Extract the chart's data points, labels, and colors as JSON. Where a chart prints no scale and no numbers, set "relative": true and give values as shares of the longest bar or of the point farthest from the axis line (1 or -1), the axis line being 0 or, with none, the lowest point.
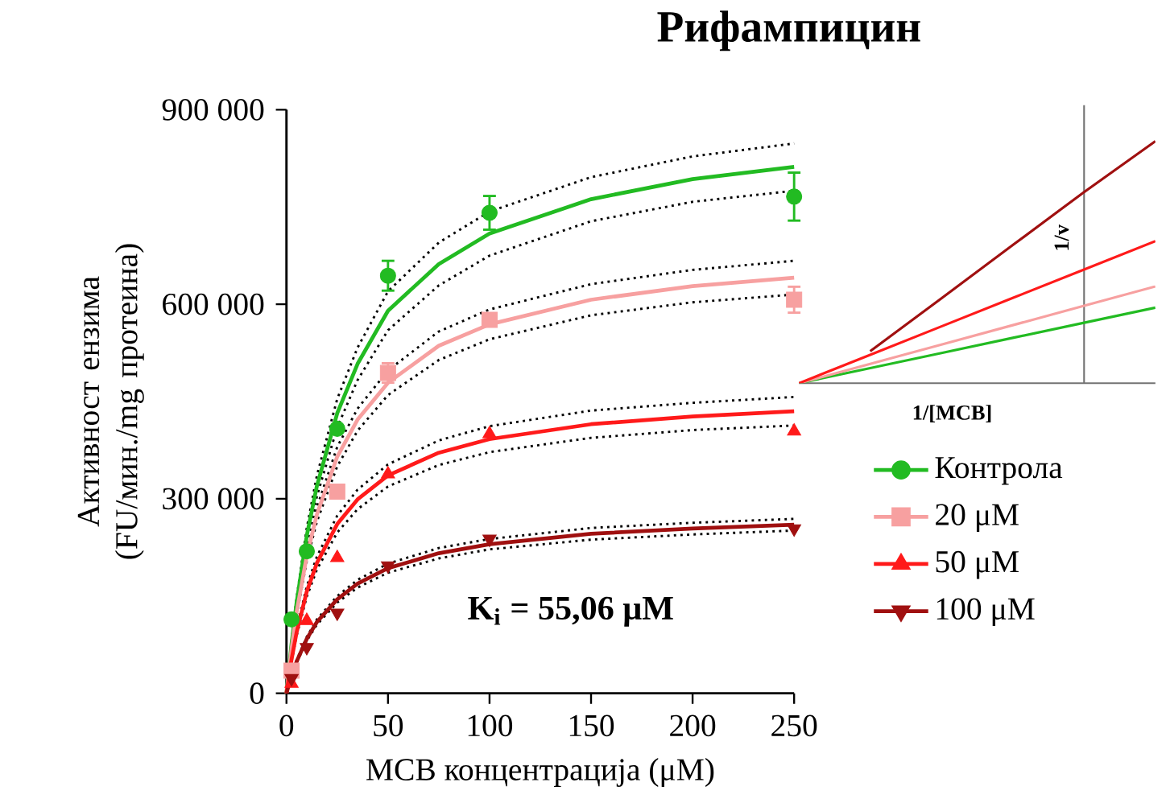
{
  "chart_data": [
    {
      "type": "scatter",
      "title": "Рифампицин",
      "xlabel": "MCB концентрација (μM)",
      "ylabel": "Активност ензима (FU/мин./mg протеина)",
      "xlim": [
        0,
        250
      ],
      "xticks": [
        0,
        50,
        100,
        150,
        200,
        250
      ],
      "ylim": [
        0,
        900000
      ],
      "yticks": [
        {
          "value": 0,
          "label": "0"
        },
        {
          "value": 300000,
          "label": "300 000"
        },
        {
          "value": 600000,
          "label": "600 000"
        },
        {
          "value": 900000,
          "label": "900 000"
        }
      ],
      "legend": "right",
      "grid": false,
      "annotations": [
        "K$_{i}$ = 55,06 μM"
      ],
      "series": [
        {
          "type": "line",
          "color": "#000000",
          "line_style": "dotted",
          "x": [
            0,
            2.5,
            5,
            10,
            15,
            25,
            35,
            50,
            75,
            100,
            150,
            200,
            250
          ],
          "values": [
            0,
            72000,
            133000,
            231000,
            304000,
            410000,
            483000,
            560000,
            629000,
            675000,
            728000,
            758000,
            775000
          ]
        },
        {
          "type": "line",
          "color": "#000000",
          "line_style": "dotted",
          "x": [
            0,
            2.5,
            5,
            10,
            15,
            25,
            35,
            50,
            75,
            100,
            150,
            200,
            250
          ],
          "values": [
            0,
            80000,
            147000,
            255000,
            336000,
            454000,
            533000,
            620000,
            695000,
            743000,
            796000,
            828000,
            848000
          ]
        },
        {
          "type": "line",
          "color": "#000000",
          "line_style": "dotted",
          "x": [
            0,
            2.5,
            5,
            10,
            15,
            25,
            35,
            50,
            75,
            100,
            150,
            200,
            250
          ],
          "values": [
            0,
            66000,
            120000,
            204000,
            265000,
            350000,
            405000,
            460000,
            514000,
            546000,
            583000,
            603000,
            615000
          ]
        },
        {
          "type": "line",
          "color": "#000000",
          "line_style": "dotted",
          "x": [
            0,
            2.5,
            5,
            10,
            15,
            25,
            35,
            50,
            75,
            100,
            150,
            200,
            250
          ],
          "values": [
            0,
            72000,
            130000,
            220000,
            287000,
            380000,
            439000,
            498000,
            558000,
            592000,
            631000,
            653000,
            667000
          ]
        },
        {
          "type": "line",
          "color": "#000000",
          "line_style": "dotted",
          "x": [
            0,
            2.5,
            5,
            10,
            15,
            25,
            35,
            50,
            75,
            100,
            150,
            200,
            250
          ],
          "values": [
            0,
            49000,
            89000,
            149000,
            191000,
            248000,
            284000,
            319000,
            352000,
            372000,
            394000,
            406000,
            413000
          ]
        },
        {
          "type": "line",
          "color": "#000000",
          "line_style": "dotted",
          "x": [
            0,
            2.5,
            5,
            10,
            15,
            25,
            35,
            50,
            75,
            100,
            150,
            200,
            250
          ],
          "values": [
            0,
            55000,
            99000,
            165000,
            211000,
            274000,
            314000,
            353000,
            390000,
            412000,
            436000,
            448000,
            457000
          ]
        },
        {
          "type": "line",
          "color": "#000000",
          "line_style": "dotted",
          "x": [
            0,
            2.5,
            5,
            10,
            15,
            25,
            35,
            50,
            75,
            100,
            150,
            200,
            250
          ],
          "values": [
            0,
            26000,
            47000,
            81000,
            106000,
            140000,
            163000,
            186000,
            208000,
            222000,
            237000,
            245000,
            251000
          ]
        },
        {
          "type": "line",
          "color": "#000000",
          "line_style": "dotted",
          "x": [
            0,
            2.5,
            5,
            10,
            15,
            25,
            35,
            50,
            75,
            100,
            150,
            200,
            250
          ],
          "values": [
            0,
            28000,
            51000,
            87000,
            114000,
            150000,
            175000,
            200000,
            224000,
            238000,
            255000,
            263000,
            269000
          ]
        },
        {
          "type": "line",
          "color": "#22bb22",
          "x": [
            0,
            2.5,
            5,
            10,
            15,
            25,
            35,
            50,
            75,
            100,
            150,
            200,
            250
          ],
          "values": [
            0,
            76000,
            140000,
            243000,
            320000,
            432000,
            508000,
            590000,
            662000,
            709000,
            762000,
            793000,
            812000
          ]
        },
        {
          "type": "line",
          "color": "#f7a0a0",
          "x": [
            0,
            2.5,
            5,
            10,
            15,
            25,
            35,
            50,
            75,
            100,
            150,
            200,
            250
          ],
          "values": [
            0,
            69000,
            125000,
            212000,
            276000,
            365000,
            422000,
            479000,
            536000,
            569000,
            607000,
            628000,
            641000
          ]
        },
        {
          "type": "line",
          "color": "#ff1a1a",
          "x": [
            0,
            2.5,
            5,
            10,
            15,
            25,
            35,
            50,
            75,
            100,
            150,
            200,
            250
          ],
          "values": [
            0,
            52000,
            94000,
            157000,
            201000,
            261000,
            299000,
            336000,
            371000,
            392000,
            415000,
            427000,
            435000
          ]
        },
        {
          "type": "line",
          "color": "#a01010",
          "x": [
            0,
            2.5,
            5,
            10,
            15,
            25,
            35,
            50,
            75,
            100,
            150,
            200,
            250
          ],
          "values": [
            0,
            27000,
            49000,
            84000,
            110000,
            145000,
            169000,
            193000,
            216000,
            230000,
            246000,
            254000,
            260000
          ]
        },
        {
          "name": "Контрола",
          "color": "#22bb22",
          "marker": "circle",
          "x": [
            2.5,
            10,
            25,
            50,
            100,
            250
          ],
          "values": [
            114000,
            219000,
            408000,
            644000,
            741000,
            766000
          ],
          "errors": [
            null,
            null,
            null,
            23000,
            26000,
            37000
          ]
        },
        {
          "name": "20 μM",
          "color": "#f7a0a0",
          "marker": "square",
          "x": [
            2.5,
            25,
            50,
            100,
            250
          ],
          "values": [
            35000,
            311000,
            494000,
            576000,
            607000
          ],
          "errors": [
            null,
            null,
            15000,
            10000,
            20000
          ]
        },
        {
          "name": "50 μM",
          "color": "#ff1a1a",
          "marker": "triangle",
          "x": [
            2.5,
            10,
            25,
            50,
            100,
            250
          ],
          "values": [
            15000,
            112000,
            209000,
            338000,
            400000,
            404000
          ]
        },
        {
          "name": "100 μM",
          "color": "#a01010",
          "marker": "triangle-down",
          "x": [
            2.5,
            10,
            25,
            50,
            100,
            250
          ],
          "values": [
            23000,
            71000,
            124000,
            197000,
            238000,
            254000
          ]
        }
      ]
    },
    {
      "type": "line",
      "relative": true,
      "xlabel": "1/[MCB]",
      "ylabel": "1/v",
      "categories": [
        null,
        null,
        null,
        null,
        null,
        null
      ],
      "series": [
        {
          "color": "#22bb22",
          "values": [
            0,
            0.0625,
            0.125,
            0.1875,
            0.25,
            0.3125
          ]
        },
        {
          "color": "#f7a0a0",
          "values": [
            0,
            0.08,
            0.16,
            0.24,
            0.32,
            0.4
          ]
        },
        {
          "color": "#ff1a1a",
          "values": [
            0,
            0.1175,
            0.235,
            0.3525,
            0.47,
            0.5875
          ]
        },
        {
          "color": "#a01010",
          "values": [
            null,
            0.132,
            0.351,
            0.571,
            0.79,
            1
          ]
        }
      ]
    }
  ]
}
